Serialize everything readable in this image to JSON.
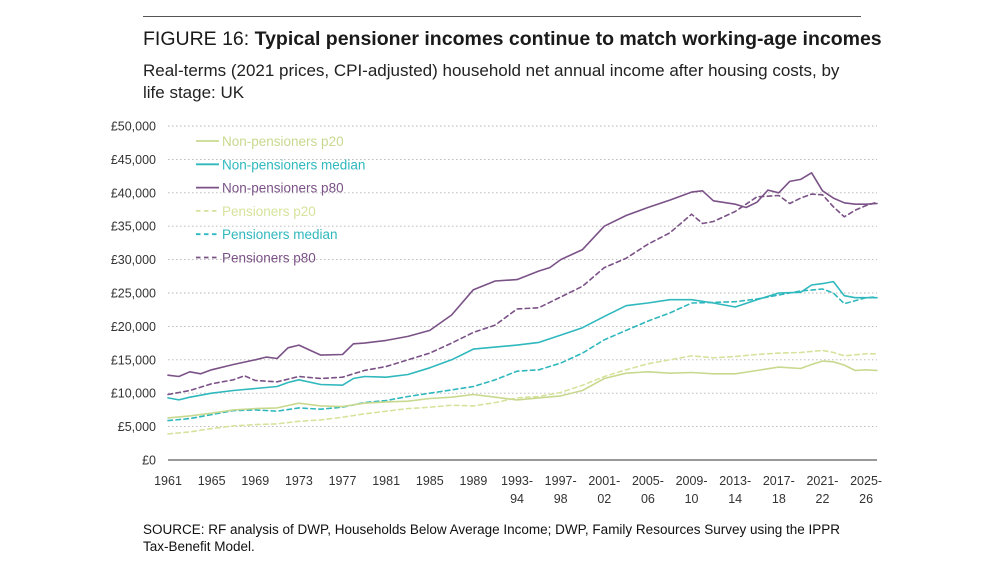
{
  "header": {
    "figure_label": "FIGURE 16:",
    "title": "Typical pensioner incomes continue to match working-age incomes",
    "subtitle": "Real-terms (2021 prices, CPI-adjusted) household net annual income after housing costs, by life stage: UK"
  },
  "source": "SOURCE: RF analysis of DWP, Households Below Average Income; DWP, Family Resources Survey using the IPPR Tax-Benefit Model.",
  "chart_data": {
    "type": "line",
    "grid": true,
    "legend_position": "top-left",
    "ylim": [
      0,
      50000
    ],
    "y_ticks": [
      0,
      5000,
      10000,
      15000,
      20000,
      25000,
      30000,
      35000,
      40000,
      45000,
      50000
    ],
    "y_tick_labels": [
      "£0",
      "£5,000",
      "£10,000",
      "£15,000",
      "£20,000",
      "£25,000",
      "£30,000",
      "£35,000",
      "£40,000",
      "£45,000",
      "£50,000"
    ],
    "x_start": 1961,
    "x_end": 2026,
    "x_tick_labels": [
      {
        "x": 1961,
        "label": [
          "1961"
        ]
      },
      {
        "x": 1965,
        "label": [
          "1965"
        ]
      },
      {
        "x": 1969,
        "label": [
          "1969"
        ]
      },
      {
        "x": 1973,
        "label": [
          "1973"
        ]
      },
      {
        "x": 1977,
        "label": [
          "1977"
        ]
      },
      {
        "x": 1981,
        "label": [
          "1981"
        ]
      },
      {
        "x": 1985,
        "label": [
          "1985"
        ]
      },
      {
        "x": 1989,
        "label": [
          "1989"
        ]
      },
      {
        "x": 1993,
        "label": [
          "1993-",
          "94"
        ]
      },
      {
        "x": 1997,
        "label": [
          "1997-",
          "98"
        ]
      },
      {
        "x": 2001,
        "label": [
          "2001-",
          "02"
        ]
      },
      {
        "x": 2005,
        "label": [
          "2005-",
          "06"
        ]
      },
      {
        "x": 2009,
        "label": [
          "2009-",
          "10"
        ]
      },
      {
        "x": 2013,
        "label": [
          "2013-",
          "14"
        ]
      },
      {
        "x": 2017,
        "label": [
          "2017-",
          "18"
        ]
      },
      {
        "x": 2021,
        "label": [
          "2021-",
          "22"
        ]
      },
      {
        "x": 2025,
        "label": [
          "2025-",
          "26"
        ]
      }
    ],
    "series": [
      {
        "name": "Non-pensioners p20",
        "color": "#c8d98f",
        "dash": false,
        "points": [
          [
            1961,
            6300
          ],
          [
            1963,
            6600
          ],
          [
            1965,
            7000
          ],
          [
            1967,
            7500
          ],
          [
            1969,
            7700
          ],
          [
            1971,
            7800
          ],
          [
            1973,
            8500
          ],
          [
            1975,
            8100
          ],
          [
            1977,
            8000
          ],
          [
            1979,
            8500
          ],
          [
            1981,
            8700
          ],
          [
            1983,
            8800
          ],
          [
            1985,
            9200
          ],
          [
            1987,
            9400
          ],
          [
            1989,
            9800
          ],
          [
            1991,
            9400
          ],
          [
            1993,
            9000
          ],
          [
            1995,
            9300
          ],
          [
            1997,
            9600
          ],
          [
            1999,
            10400
          ],
          [
            2001,
            12200
          ],
          [
            2003,
            13000
          ],
          [
            2005,
            13200
          ],
          [
            2007,
            13000
          ],
          [
            2009,
            13100
          ],
          [
            2011,
            12900
          ],
          [
            2013,
            12900
          ],
          [
            2015,
            13400
          ],
          [
            2017,
            13900
          ],
          [
            2019,
            13700
          ],
          [
            2020,
            14300
          ],
          [
            2021,
            14800
          ],
          [
            2022,
            14700
          ],
          [
            2023,
            14200
          ],
          [
            2024,
            13400
          ],
          [
            2025,
            13500
          ],
          [
            2026,
            13400
          ]
        ]
      },
      {
        "name": "Non-pensioners median",
        "color": "#2fb8bd",
        "dash": false,
        "points": [
          [
            1961,
            9300
          ],
          [
            1962,
            9000
          ],
          [
            1963,
            9400
          ],
          [
            1965,
            10000
          ],
          [
            1967,
            10400
          ],
          [
            1969,
            10700
          ],
          [
            1971,
            11000
          ],
          [
            1972,
            11600
          ],
          [
            1973,
            12000
          ],
          [
            1975,
            11300
          ],
          [
            1977,
            11200
          ],
          [
            1978,
            12200
          ],
          [
            1979,
            12500
          ],
          [
            1981,
            12400
          ],
          [
            1983,
            12800
          ],
          [
            1985,
            13800
          ],
          [
            1987,
            15000
          ],
          [
            1989,
            16600
          ],
          [
            1991,
            16900
          ],
          [
            1993,
            17200
          ],
          [
            1995,
            17600
          ],
          [
            1997,
            18700
          ],
          [
            1999,
            19800
          ],
          [
            2001,
            21500
          ],
          [
            2003,
            23100
          ],
          [
            2005,
            23500
          ],
          [
            2007,
            24000
          ],
          [
            2009,
            24000
          ],
          [
            2011,
            23500
          ],
          [
            2013,
            22900
          ],
          [
            2015,
            24000
          ],
          [
            2017,
            25000
          ],
          [
            2019,
            25100
          ],
          [
            2020,
            26200
          ],
          [
            2021,
            26400
          ],
          [
            2022,
            26700
          ],
          [
            2023,
            24600
          ],
          [
            2024,
            24300
          ],
          [
            2025,
            24300
          ],
          [
            2026,
            24300
          ]
        ]
      },
      {
        "name": "Non-pensioners p80",
        "color": "#7b5287",
        "dash": false,
        "points": [
          [
            1961,
            12700
          ],
          [
            1962,
            12500
          ],
          [
            1963,
            13200
          ],
          [
            1964,
            12900
          ],
          [
            1965,
            13500
          ],
          [
            1967,
            14300
          ],
          [
            1969,
            15000
          ],
          [
            1970,
            15400
          ],
          [
            1971,
            15200
          ],
          [
            1972,
            16800
          ],
          [
            1973,
            17200
          ],
          [
            1975,
            15700
          ],
          [
            1977,
            15800
          ],
          [
            1978,
            17400
          ],
          [
            1979,
            17500
          ],
          [
            1981,
            17900
          ],
          [
            1983,
            18500
          ],
          [
            1985,
            19400
          ],
          [
            1987,
            21700
          ],
          [
            1989,
            25500
          ],
          [
            1991,
            26800
          ],
          [
            1993,
            27000
          ],
          [
            1995,
            28300
          ],
          [
            1996,
            28800
          ],
          [
            1997,
            30000
          ],
          [
            1999,
            31500
          ],
          [
            2001,
            35000
          ],
          [
            2003,
            36600
          ],
          [
            2005,
            37800
          ],
          [
            2007,
            38900
          ],
          [
            2009,
            40100
          ],
          [
            2010,
            40300
          ],
          [
            2011,
            38800
          ],
          [
            2013,
            38300
          ],
          [
            2014,
            37800
          ],
          [
            2015,
            38600
          ],
          [
            2016,
            40400
          ],
          [
            2017,
            40000
          ],
          [
            2018,
            41700
          ],
          [
            2019,
            42000
          ],
          [
            2020,
            43000
          ],
          [
            2021,
            40300
          ],
          [
            2022,
            39200
          ],
          [
            2023,
            38500
          ],
          [
            2024,
            38300
          ],
          [
            2025,
            38300
          ],
          [
            2026,
            38400
          ]
        ]
      },
      {
        "name": "Pensioners p20",
        "color": "#d6e39d",
        "dash": true,
        "points": [
          [
            1961,
            3900
          ],
          [
            1963,
            4200
          ],
          [
            1965,
            4700
          ],
          [
            1967,
            5100
          ],
          [
            1969,
            5300
          ],
          [
            1971,
            5400
          ],
          [
            1973,
            5800
          ],
          [
            1975,
            6000
          ],
          [
            1977,
            6400
          ],
          [
            1979,
            6900
          ],
          [
            1981,
            7300
          ],
          [
            1983,
            7700
          ],
          [
            1985,
            7900
          ],
          [
            1987,
            8200
          ],
          [
            1989,
            8100
          ],
          [
            1991,
            8600
          ],
          [
            1993,
            9300
          ],
          [
            1995,
            9500
          ],
          [
            1997,
            10100
          ],
          [
            1999,
            11200
          ],
          [
            2001,
            12500
          ],
          [
            2003,
            13500
          ],
          [
            2005,
            14400
          ],
          [
            2007,
            15000
          ],
          [
            2009,
            15600
          ],
          [
            2011,
            15300
          ],
          [
            2013,
            15500
          ],
          [
            2015,
            15800
          ],
          [
            2017,
            16000
          ],
          [
            2019,
            16100
          ],
          [
            2021,
            16400
          ],
          [
            2022,
            16100
          ],
          [
            2023,
            15600
          ],
          [
            2025,
            15900
          ],
          [
            2026,
            15900
          ]
        ]
      },
      {
        "name": "Pensioners median",
        "color": "#2fb8bd",
        "dash": true,
        "points": [
          [
            1961,
            5900
          ],
          [
            1963,
            6200
          ],
          [
            1965,
            6800
          ],
          [
            1967,
            7400
          ],
          [
            1969,
            7500
          ],
          [
            1971,
            7300
          ],
          [
            1973,
            7800
          ],
          [
            1975,
            7600
          ],
          [
            1977,
            7900
          ],
          [
            1979,
            8600
          ],
          [
            1981,
            8900
          ],
          [
            1983,
            9500
          ],
          [
            1985,
            10000
          ],
          [
            1987,
            10500
          ],
          [
            1989,
            11000
          ],
          [
            1991,
            12000
          ],
          [
            1993,
            13300
          ],
          [
            1995,
            13500
          ],
          [
            1997,
            14500
          ],
          [
            1999,
            16000
          ],
          [
            2001,
            18000
          ],
          [
            2003,
            19400
          ],
          [
            2005,
            20800
          ],
          [
            2007,
            22000
          ],
          [
            2009,
            23500
          ],
          [
            2011,
            23600
          ],
          [
            2013,
            23700
          ],
          [
            2015,
            24100
          ],
          [
            2017,
            24700
          ],
          [
            2019,
            25300
          ],
          [
            2021,
            25600
          ],
          [
            2022,
            25000
          ],
          [
            2023,
            23400
          ],
          [
            2025,
            24300
          ],
          [
            2026,
            24400
          ]
        ]
      },
      {
        "name": "Pensioners p80",
        "color": "#7b5287",
        "dash": true,
        "points": [
          [
            1961,
            9800
          ],
          [
            1963,
            10400
          ],
          [
            1965,
            11400
          ],
          [
            1967,
            12000
          ],
          [
            1968,
            12600
          ],
          [
            1969,
            11900
          ],
          [
            1971,
            11700
          ],
          [
            1973,
            12500
          ],
          [
            1975,
            12200
          ],
          [
            1977,
            12400
          ],
          [
            1979,
            13400
          ],
          [
            1981,
            14000
          ],
          [
            1983,
            15000
          ],
          [
            1985,
            16000
          ],
          [
            1987,
            17500
          ],
          [
            1989,
            19100
          ],
          [
            1991,
            20200
          ],
          [
            1993,
            22600
          ],
          [
            1995,
            22800
          ],
          [
            1997,
            24400
          ],
          [
            1999,
            26000
          ],
          [
            2001,
            28800
          ],
          [
            2003,
            30200
          ],
          [
            2005,
            32300
          ],
          [
            2007,
            34000
          ],
          [
            2009,
            36800
          ],
          [
            2010,
            35400
          ],
          [
            2011,
            35700
          ],
          [
            2013,
            37200
          ],
          [
            2015,
            39400
          ],
          [
            2017,
            39600
          ],
          [
            2018,
            38400
          ],
          [
            2019,
            39200
          ],
          [
            2020,
            39800
          ],
          [
            2021,
            39700
          ],
          [
            2022,
            37900
          ],
          [
            2023,
            36400
          ],
          [
            2024,
            37400
          ],
          [
            2025,
            38100
          ],
          [
            2026,
            38600
          ]
        ]
      }
    ]
  }
}
